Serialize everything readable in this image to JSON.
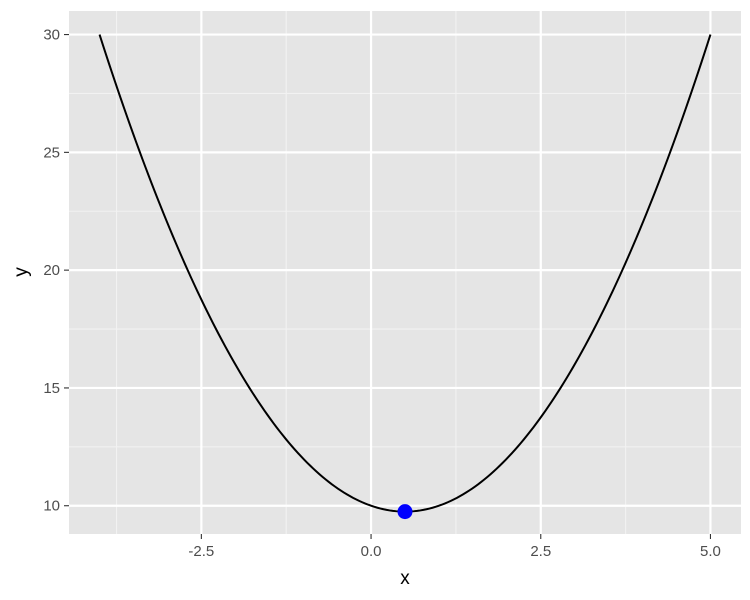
{
  "chart_data": {
    "type": "line",
    "title": "",
    "xlabel": "x",
    "ylabel": "y",
    "xlim": [
      -4.45,
      5.45
    ],
    "ylim": [
      8.8,
      31.0
    ],
    "x_ticks": [
      -2.5,
      0.0,
      2.5,
      5.0
    ],
    "x_tick_labels": [
      "-2.5",
      "0.0",
      "2.5",
      "5.0"
    ],
    "y_ticks": [
      10,
      15,
      20,
      25,
      30
    ],
    "y_tick_labels": [
      "10",
      "15",
      "20",
      "25",
      "30"
    ],
    "grid": true,
    "series": [
      {
        "curve": "quadratic",
        "x_range": [
          -4,
          5
        ],
        "points": [
          [
            -4,
            30
          ],
          [
            0.5,
            9.75
          ],
          [
            5,
            30
          ]
        ],
        "color": "#000000"
      }
    ],
    "highlight_point": {
      "x": 0.5,
      "y": 9.75,
      "color": "#0000ff"
    }
  },
  "colors": {
    "panel_background": "#e5e5e5",
    "grid_major": "#ffffff",
    "grid_minor": "#f2f2f2"
  }
}
